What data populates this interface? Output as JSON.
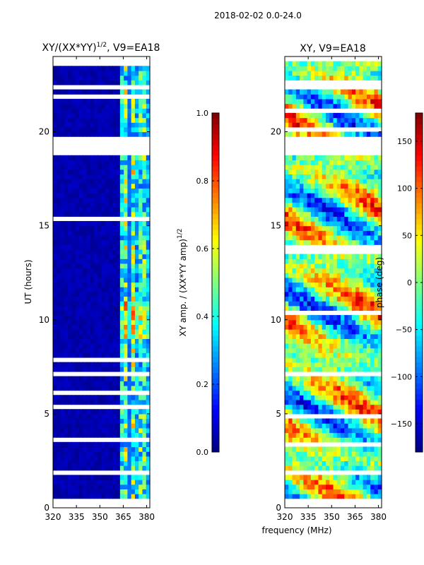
{
  "suptitle": "2018-02-02 0.0-24.0",
  "chart_data": [
    {
      "type": "heatmap",
      "title_main": "XY/(XX*YY)",
      "title_exp": "1/2",
      "title_suffix": ", V9=EA18",
      "xlabel": "",
      "ylabel": "UT (hours)",
      "xlim": [
        320,
        382
      ],
      "ylim": [
        0,
        24
      ],
      "xticks": [
        "320",
        "335",
        "350",
        "365",
        "380"
      ],
      "yticks": [
        "0",
        "5",
        "10",
        "15",
        "20"
      ],
      "xtick_values": [
        320,
        335,
        350,
        365,
        380
      ],
      "ytick_values": [
        0,
        5,
        10,
        15,
        20
      ],
      "colorbar": {
        "label_main": "XY amp. / (XX*YY amp)",
        "label_exp": "1/2",
        "range": [
          0.0,
          1.0
        ],
        "tick_values": [
          0.0,
          0.2,
          0.4,
          0.6,
          0.8,
          1.0
        ],
        "ticks": [
          "0.0",
          "0.2",
          "0.4",
          "0.6",
          "0.8",
          "1.0"
        ]
      }
    },
    {
      "type": "heatmap",
      "title": "XY, V9=EA18",
      "xlabel": "frequency (MHz)",
      "ylabel": "",
      "xlim": [
        320,
        382
      ],
      "ylim": [
        0,
        24
      ],
      "xticks": [
        "320",
        "335",
        "350",
        "365",
        "380"
      ],
      "yticks": [
        "0",
        "5",
        "10",
        "15",
        "20"
      ],
      "xtick_values": [
        320,
        335,
        350,
        365,
        380
      ],
      "ytick_values": [
        0,
        5,
        10,
        15,
        20
      ],
      "colorbar": {
        "label": "phase (deg)",
        "range": [
          -180,
          180
        ],
        "tick_values": [
          -150,
          -100,
          -50,
          0,
          50,
          100,
          150
        ],
        "ticks": [
          "−150",
          "−100",
          "−50",
          "0",
          "50",
          "100",
          "150"
        ]
      }
    }
  ],
  "blank_time_bands": [
    [
      0.1,
      0.45
    ],
    [
      1.75,
      2.0
    ],
    [
      18.8,
      19.7
    ],
    [
      22.2,
      22.6
    ],
    [
      23.8,
      24.0
    ]
  ],
  "colormap": "jet"
}
